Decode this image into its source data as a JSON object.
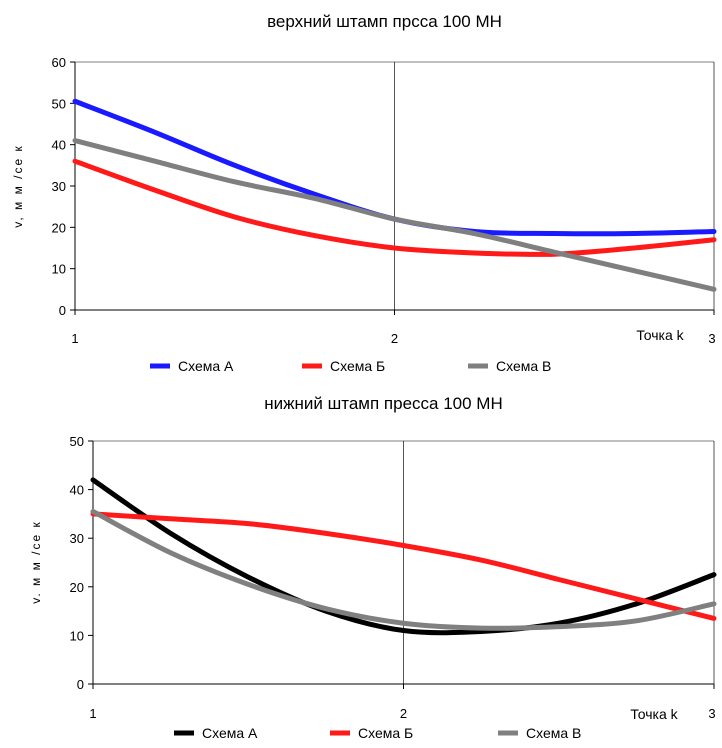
{
  "chart_data": [
    {
      "type": "line",
      "title": "верхний штамп прсса 100 МН",
      "ylabel": "v, м м /се к",
      "xlabel": "Точка k",
      "categories": [
        "1",
        "2",
        "3"
      ],
      "x": [
        1,
        1.25,
        1.5,
        1.75,
        2,
        2.25,
        2.5,
        2.75,
        3
      ],
      "ylim": [
        0,
        60
      ],
      "yticks": [
        "0",
        "10",
        "20",
        "30",
        "40",
        "50",
        "60"
      ],
      "grid": "vertical",
      "legend": "bottom",
      "series": [
        {
          "name": "Схема А",
          "color": "#1a1aff",
          "values": [
            50.5,
            43,
            35,
            28,
            22,
            19,
            18.5,
            18.5,
            19
          ]
        },
        {
          "name": "Схема Б",
          "color": "#ff1a1a",
          "values": [
            36,
            29,
            22.5,
            18,
            15,
            13.8,
            13.5,
            15,
            17
          ]
        },
        {
          "name": "Схема В",
          "color": "#7f7f7f",
          "values": [
            41,
            36,
            31,
            27,
            22,
            18.5,
            14,
            9.5,
            5
          ]
        }
      ]
    },
    {
      "type": "line",
      "title": "нижний штамп пресса 100 МН",
      "ylabel": "v. м м /се к",
      "xlabel": "Точка k",
      "categories": [
        "1",
        "2",
        "3"
      ],
      "x": [
        1,
        1.25,
        1.5,
        1.75,
        2,
        2.25,
        2.5,
        2.75,
        3
      ],
      "ylim": [
        0,
        50
      ],
      "yticks": [
        "0",
        "10",
        "20",
        "30",
        "40",
        "50"
      ],
      "grid": "vertical",
      "legend": "bottom",
      "series": [
        {
          "name": "Схема А",
          "color": "#000000",
          "values": [
            42,
            31,
            22,
            15,
            11,
            10.8,
            12.5,
            16.5,
            22.5
          ]
        },
        {
          "name": "Схема Б",
          "color": "#ff1a1a",
          "values": [
            35,
            34,
            33,
            31,
            28.5,
            25.5,
            21.5,
            17.5,
            13.5
          ]
        },
        {
          "name": "Схема В",
          "color": "#808080",
          "values": [
            35.5,
            27,
            20.5,
            15.5,
            12.5,
            11.5,
            11.8,
            13,
            16.5
          ]
        }
      ]
    }
  ]
}
